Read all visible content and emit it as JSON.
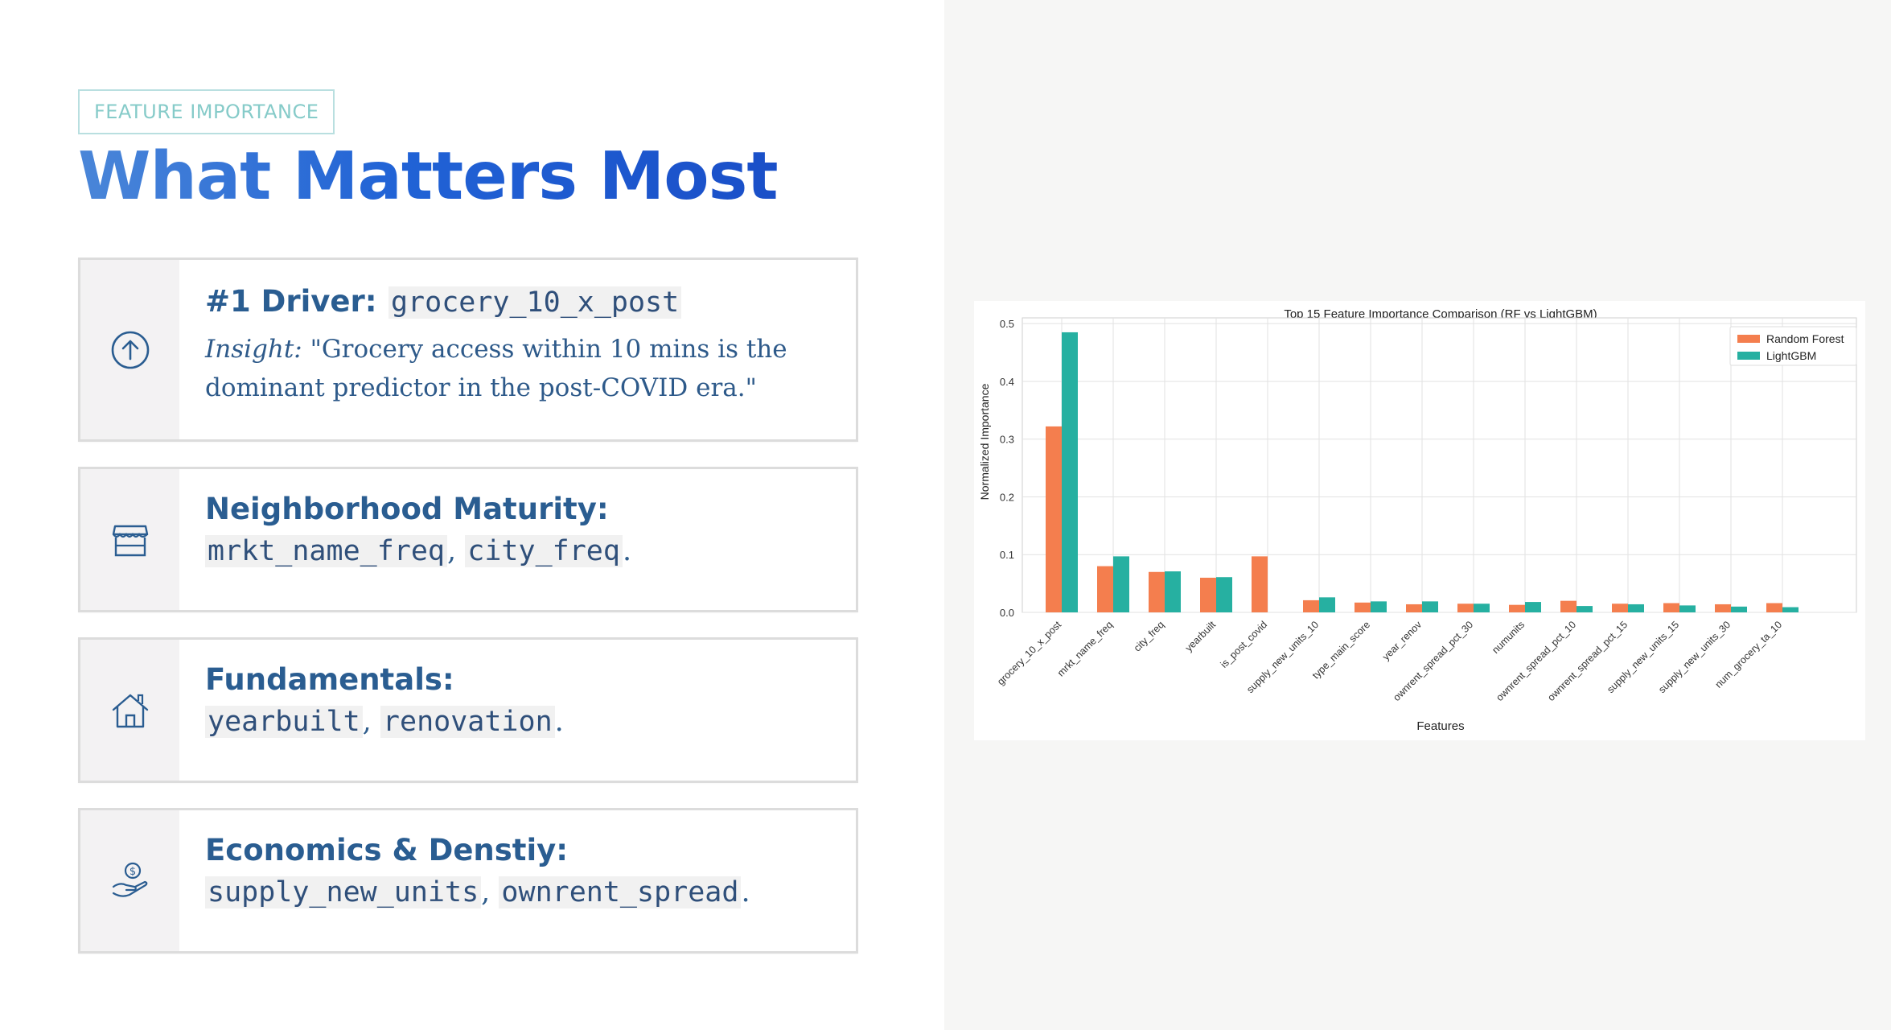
{
  "tag": "FEATURE IMPORTANCE",
  "title": "What Matters Most",
  "cards": {
    "driver": {
      "heading": "#1 Driver:",
      "code": "grocery_10_x_post",
      "insight_label": "Insight:",
      "insight_text": " \"Grocery access within 10 mins is the dominant predictor in the post-COVID era.\"",
      "icon": "arrow-up-circle-icon"
    },
    "neighborhood": {
      "heading": "Neighborhood Maturity:",
      "code1": "mrkt_name_freq",
      "sep": ", ",
      "code2": "city_freq",
      "end": ".",
      "icon": "storefront-icon"
    },
    "fundamentals": {
      "heading": "Fundamentals:",
      "code1": "yearbuilt",
      "sep": ", ",
      "code2": "renovation",
      "end": ".",
      "icon": "house-icon"
    },
    "economics": {
      "heading": "Economics & Denstiy:",
      "code1": "supply_new_units",
      "sep": ", ",
      "code2": "ownrent_spread",
      "end": ".",
      "icon": "hand-coin-icon"
    }
  },
  "colors": {
    "rf": "#f47e4e",
    "lgbm": "#26b0a1",
    "accent": "#2163d6"
  },
  "chart_data": {
    "type": "bar",
    "title": "Top 15 Feature Importance Comparison (RF vs LightGBM)",
    "xlabel": "Features",
    "ylabel": "Normalized Importance",
    "ylim": [
      0,
      0.51
    ],
    "yticks": [
      "0.0",
      "0.1",
      "0.2",
      "0.3",
      "0.4",
      "0.5"
    ],
    "grid": true,
    "legend_position": "top-right",
    "categories": [
      "grocery_10_x_post",
      "mrkt_name_freq",
      "city_freq",
      "yearbuilt",
      "is_post_covid",
      "supply_new_units_10",
      "type_main_score",
      "year_renov",
      "ownrent_spread_pct_30",
      "numunits",
      "ownrent_spread_pct_10",
      "ownrent_spread_pct_15",
      "supply_new_units_15",
      "supply_new_units_30",
      "num_grocery_ta_10"
    ],
    "series": [
      {
        "name": "Random Forest",
        "values": [
          0.322,
          0.08,
          0.07,
          0.06,
          0.097,
          0.021,
          0.017,
          0.014,
          0.015,
          0.013,
          0.02,
          0.015,
          0.016,
          0.014,
          0.016
        ]
      },
      {
        "name": "LightGBM",
        "values": [
          0.485,
          0.097,
          0.071,
          0.061,
          0.0,
          0.026,
          0.019,
          0.019,
          0.015,
          0.018,
          0.011,
          0.014,
          0.012,
          0.01,
          0.009
        ]
      }
    ]
  }
}
